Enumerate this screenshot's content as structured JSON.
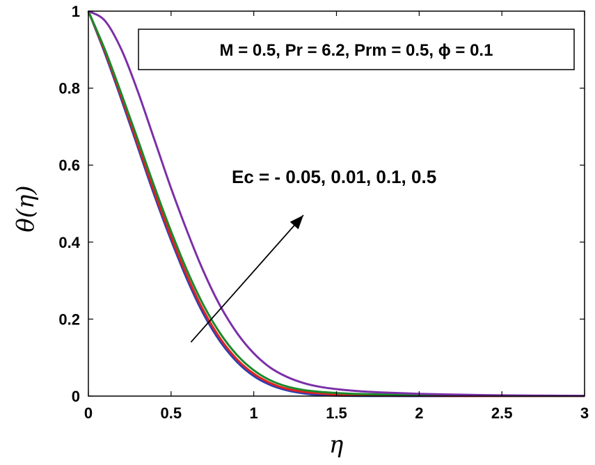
{
  "chart_data": {
    "type": "line",
    "xlabel": "η",
    "ylabel": "θ(η)",
    "xlim": [
      0,
      3
    ],
    "ylim": [
      0,
      1
    ],
    "xticks": [
      "0",
      "0.5",
      "1",
      "1.5",
      "2",
      "2.5",
      "3"
    ],
    "yticks": [
      "0",
      "0.2",
      "0.4",
      "0.6",
      "0.8",
      "1"
    ],
    "legend_text": "M = 0.5, Pr = 6.2, Prm = 0.5, ϕ = 0.1",
    "annotation": "Ec = - 0.05, 0.01, 0.1, 0.5",
    "annotation_arrow": {
      "from": [
        0.62,
        0.14
      ],
      "to": [
        1.3,
        0.47
      ]
    },
    "x": [
      0,
      0.1,
      0.2,
      0.3,
      0.4,
      0.5,
      0.6,
      0.7,
      0.8,
      0.9,
      1.0,
      1.1,
      1.2,
      1.3,
      1.4,
      1.5,
      1.6,
      1.7,
      1.8,
      2.0,
      2.2,
      2.5,
      2.8,
      3.0
    ],
    "series": [
      {
        "name": "Ec = -0.05",
        "color": "#2e3fb0",
        "values": [
          1.0,
          0.89,
          0.77,
          0.645,
          0.52,
          0.405,
          0.3,
          0.21,
          0.14,
          0.088,
          0.052,
          0.029,
          0.015,
          0.007,
          0.003,
          0.001,
          0.0005,
          0.0002,
          0.0001,
          0,
          0,
          0,
          0,
          0
        ]
      },
      {
        "name": "Ec = 0.01",
        "color": "#e02020",
        "values": [
          1.0,
          0.895,
          0.777,
          0.653,
          0.529,
          0.414,
          0.309,
          0.219,
          0.148,
          0.095,
          0.058,
          0.034,
          0.019,
          0.011,
          0.007,
          0.004,
          0.003,
          0.002,
          0.0015,
          0.001,
          0.0005,
          0.0002,
          0.0001,
          0
        ]
      },
      {
        "name": "Ec = 0.1",
        "color": "#1a8a2a",
        "values": [
          1.0,
          0.9,
          0.785,
          0.665,
          0.543,
          0.428,
          0.323,
          0.233,
          0.161,
          0.106,
          0.067,
          0.041,
          0.025,
          0.016,
          0.011,
          0.008,
          0.006,
          0.005,
          0.004,
          0.003,
          0.002,
          0.001,
          0.0005,
          0.0003
        ]
      },
      {
        "name": "Ec = 0.5",
        "color": "#7b2fa8",
        "values": [
          1.0,
          0.975,
          0.9,
          0.79,
          0.665,
          0.54,
          0.425,
          0.32,
          0.232,
          0.163,
          0.111,
          0.074,
          0.05,
          0.034,
          0.024,
          0.018,
          0.014,
          0.011,
          0.009,
          0.006,
          0.004,
          0.002,
          0.001,
          0.0005
        ]
      }
    ]
  }
}
